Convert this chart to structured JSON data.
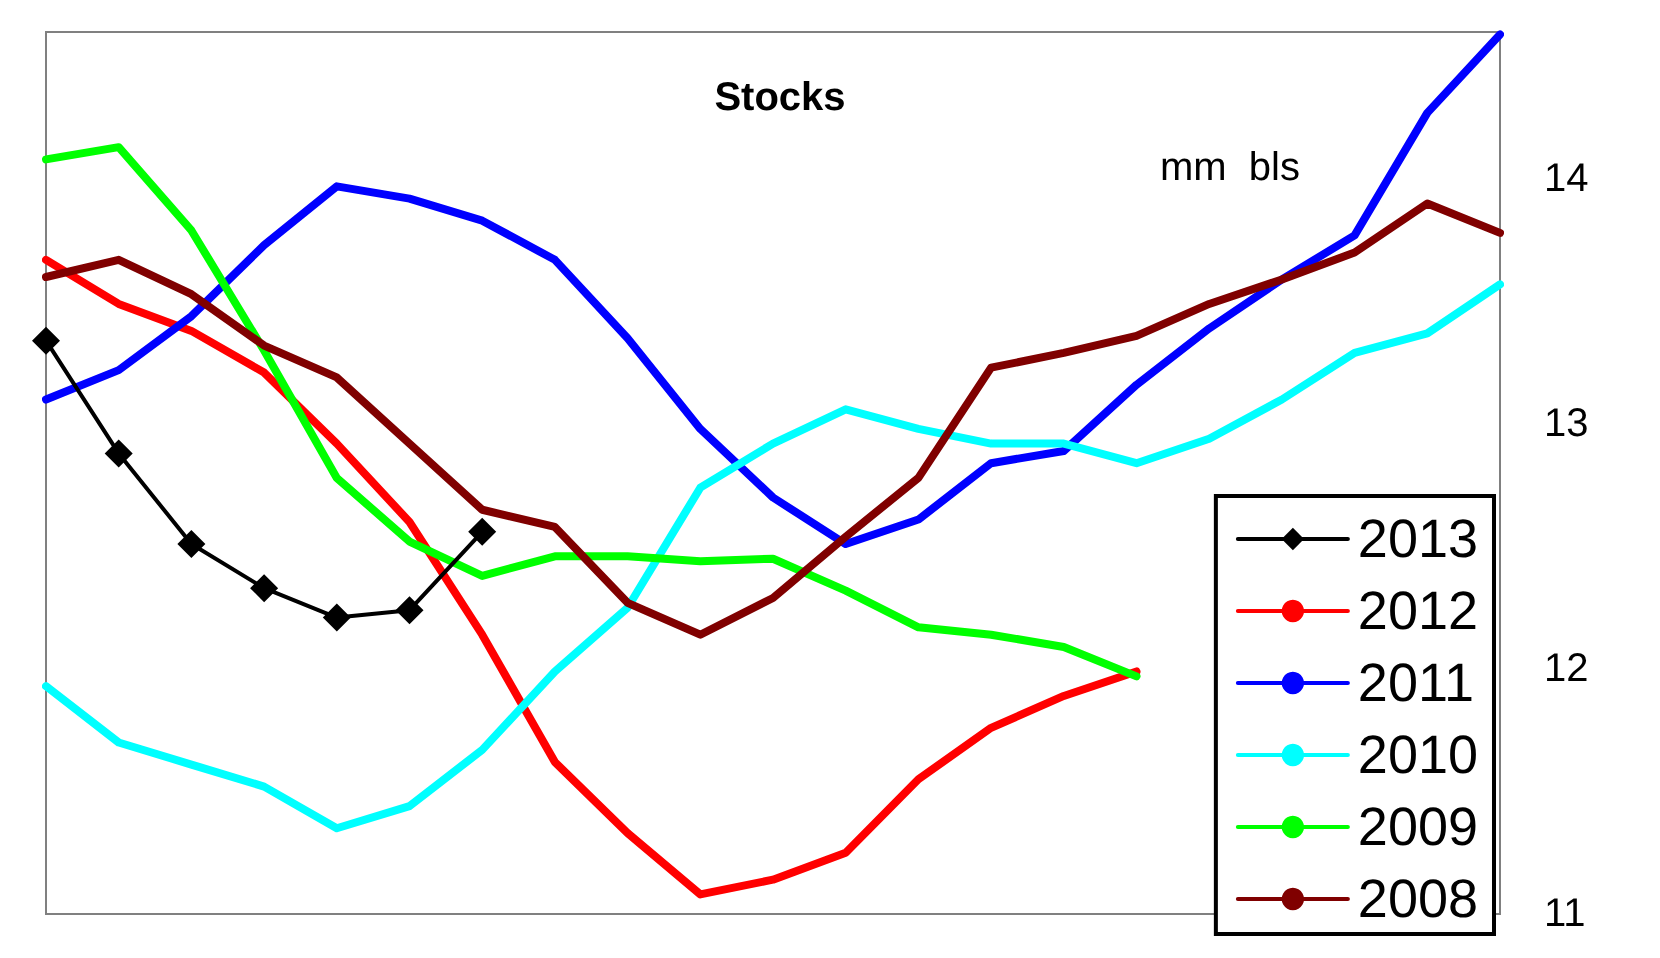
{
  "chart_data": {
    "type": "line",
    "title": "Stocks",
    "annotations": [
      "mm  bls"
    ],
    "categories": [
      null,
      null,
      null,
      null,
      null,
      null,
      null,
      null,
      null,
      null,
      null,
      null,
      null,
      null,
      null,
      null,
      null,
      null,
      null,
      null,
      null
    ],
    "ylim": [
      11,
      14.6
    ],
    "yticks": [
      11,
      12,
      13,
      14
    ],
    "grid": false,
    "legend": "bottom right",
    "marker": "none",
    "line_style": "solid",
    "series": [
      {
        "name": "2013",
        "color": "#000000",
        "marker": "diamond",
        "values": [
          13.34,
          12.88,
          12.51,
          12.33,
          12.21,
          12.24,
          12.56,
          null,
          null,
          null,
          null,
          null,
          null,
          null,
          null,
          null,
          null,
          null,
          null,
          null,
          null
        ]
      },
      {
        "name": "2012",
        "color": "#ff0000",
        "values": [
          13.67,
          13.49,
          13.38,
          13.21,
          12.92,
          12.6,
          12.14,
          11.62,
          11.33,
          11.08,
          11.14,
          11.25,
          11.55,
          11.76,
          11.89,
          11.99,
          null,
          null,
          null,
          null,
          null
        ]
      },
      {
        "name": "2011",
        "color": "#0000ff",
        "values": [
          13.1,
          13.22,
          13.44,
          13.73,
          13.97,
          13.92,
          13.83,
          13.67,
          13.35,
          12.98,
          12.7,
          12.51,
          12.61,
          12.84,
          12.89,
          13.16,
          13.39,
          13.59,
          13.77,
          14.27,
          14.59
        ]
      },
      {
        "name": "2010",
        "color": "#00ffff",
        "values": [
          11.93,
          11.7,
          11.61,
          11.52,
          11.35,
          11.44,
          11.67,
          11.99,
          12.25,
          12.74,
          12.92,
          13.06,
          12.98,
          12.92,
          12.92,
          12.84,
          12.94,
          13.1,
          13.29,
          13.37,
          13.57
        ]
      },
      {
        "name": "2009",
        "color": "#00ff00",
        "values": [
          14.08,
          14.13,
          13.79,
          13.3,
          12.78,
          12.52,
          12.38,
          12.46,
          12.46,
          12.44,
          12.45,
          12.32,
          12.17,
          12.14,
          12.09,
          11.97,
          null,
          null,
          null,
          null,
          null
        ]
      },
      {
        "name": "2008",
        "color": "#800000",
        "values": [
          13.6,
          13.67,
          13.53,
          13.32,
          13.19,
          12.92,
          12.65,
          12.58,
          12.27,
          12.14,
          12.29,
          12.54,
          12.78,
          13.23,
          13.29,
          13.36,
          13.49,
          13.59,
          13.7,
          13.9,
          13.78
        ]
      }
    ]
  }
}
